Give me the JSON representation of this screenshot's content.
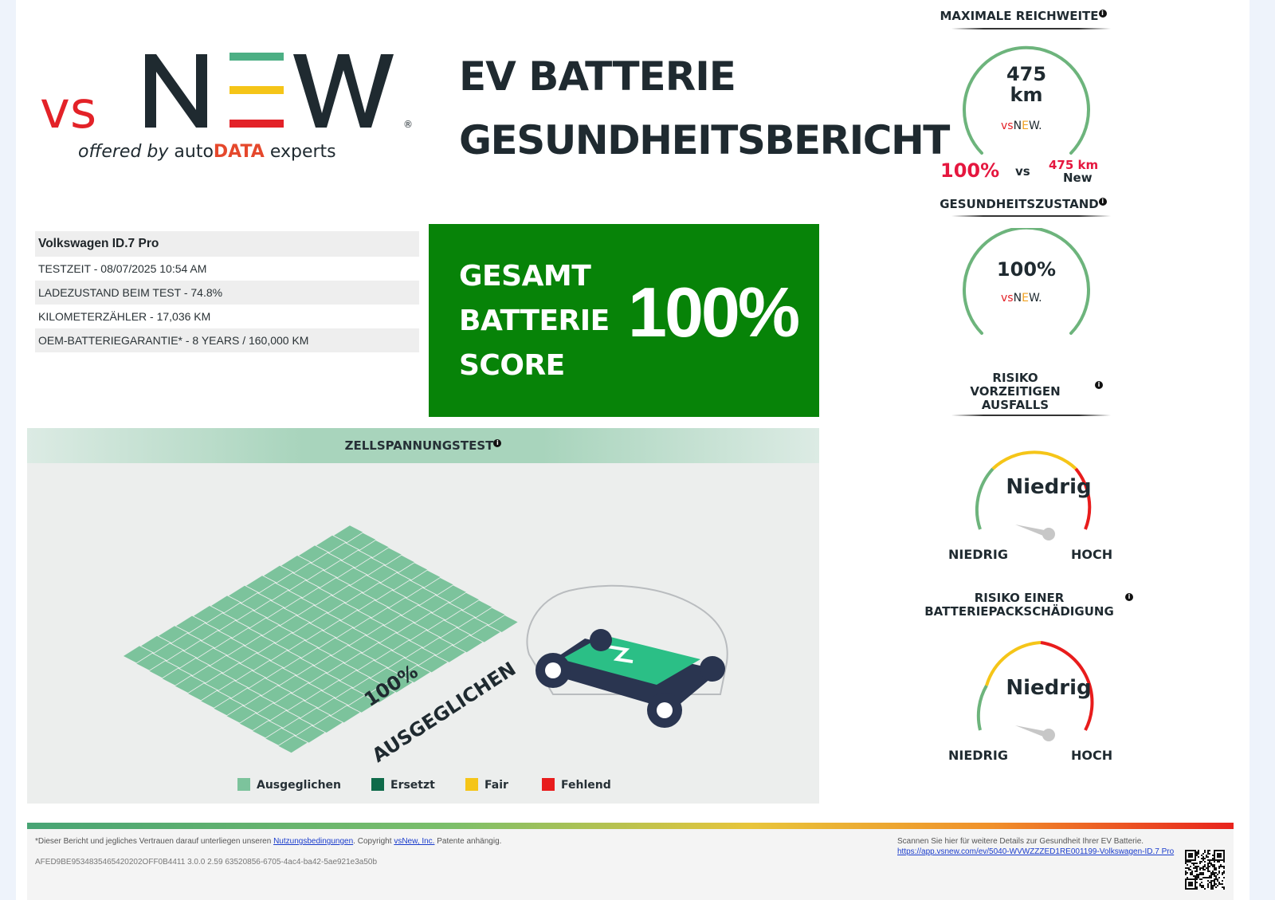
{
  "logo": {
    "brand_vs": "vs",
    "brand_new": "NEW",
    "tagline_offered": "offered by",
    "tagline_auto": "auto",
    "tagline_data": "DATA",
    "tagline_experts": "experts",
    "registered": "®"
  },
  "title": {
    "line1": "EV BATTERIE",
    "line2": "GESUNDHEITSBERICHT"
  },
  "vehicle": {
    "name": "Volkswagen ID.7 Pro",
    "rows": [
      "TESTZEIT - 08/07/2025 10:54 AM",
      "LADEZUSTAND BEIM TEST - 74.8%",
      "KILOMETERZÄHLER - 17,036 KM",
      "OEM-BATTERIEGARANTIE* - 8 YEARS / 160,000 KM"
    ]
  },
  "score": {
    "label1": "GESAMT",
    "label2": "BATTERIE",
    "label3": "SCORE",
    "value": "100%"
  },
  "cell_test": {
    "title": "ZELLSPANNUNGSTEST",
    "overlay_pct": "100%",
    "overlay_word": "AUSGEGLICHEN",
    "legend": [
      {
        "label": "Ausgeglichen",
        "color": "#7cc39c"
      },
      {
        "label": "Ersetzt",
        "color": "#0f6b4a"
      },
      {
        "label": "Fair",
        "color": "#f5c518"
      },
      {
        "label": "Fehlend",
        "color": "#e81c1c"
      }
    ]
  },
  "range": {
    "title": "MAXIMALE REICHWEITE",
    "value": "475",
    "unit": "km",
    "pct": "100%",
    "vs": "vs",
    "new_value": "475 km",
    "new_label": "New",
    "color": "#6db47c"
  },
  "health": {
    "title": "GESUNDHEITSZUSTAND",
    "value": "100%",
    "color": "#6db47c"
  },
  "risk_failure": {
    "title_l1": "RISIKO",
    "title_l2": "VORZEITIGEN",
    "title_l3": "AUSFALLS",
    "value": "Niedrig",
    "low": "NIEDRIG",
    "high": "HOCH"
  },
  "risk_pack": {
    "title_l1": "RISIKO EINER",
    "title_l2": "BATTERIEPACKSCHÄDIGUNG",
    "value": "Niedrig",
    "low": "NIEDRIG",
    "high": "HOCH"
  },
  "footer": {
    "disclaimer_pre": "*Dieser Bericht und jegliches Vertrauen darauf unterliegen unseren",
    "terms_link": "Nutzungsbedingungen",
    "disclaimer_mid": ". Copyright",
    "company_link": "vsNew, Inc.",
    "disclaimer_post": "Patente anhängig.",
    "id_line": "AFED9BE9534835465420202OFF0B4411 3.0.0 2.59 63520856-6705-4ac4-ba42-5ae921e3a50b",
    "scan_text": "Scannen Sie hier für weitere Details zur Gesundheit Ihrer EV Batterie.",
    "scan_link": "https://app.vsnew.com/ev/5040-WVWZZZED1RE001199-Volkswagen-ID.7 Pro"
  }
}
